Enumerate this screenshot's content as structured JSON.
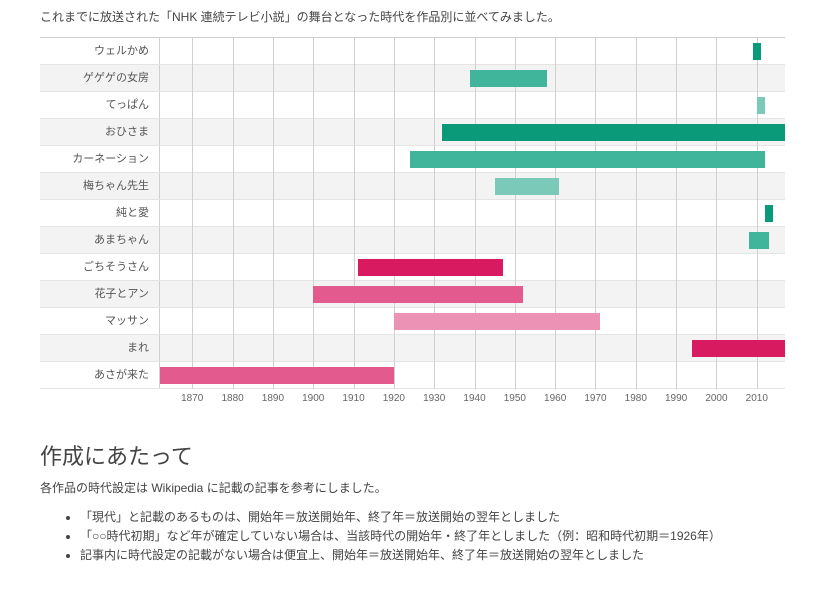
{
  "intro_text": "これまでに放送された「NHK 連続テレビ小説」の舞台となった時代を作品別に並べてみました。",
  "chart": {
    "type": "gantt-bar",
    "text_color": "#555555",
    "grid_color": "#d0d0d0",
    "row_alt_bg": "#f3f3f3",
    "axis": {
      "min": 1862,
      "max": 2017,
      "ticks": [
        1870,
        1880,
        1890,
        1900,
        1910,
        1920,
        1930,
        1940,
        1950,
        1960,
        1970,
        1980,
        1990,
        2000,
        2010
      ],
      "label_fontsize": 10
    },
    "colors": {
      "teal_dark": "#0a9a7a",
      "teal_mid": "#41b59c",
      "teal_light": "#7bc9b8",
      "pink_dark": "#d81b60",
      "pink_mid": "#e35a8f",
      "pink_light": "#ec92b4"
    },
    "rows": [
      {
        "label": "ウェルかめ",
        "start": 2009,
        "end": 2011,
        "color": "teal_dark"
      },
      {
        "label": "ゲゲゲの女房",
        "start": 1939,
        "end": 1958,
        "color": "teal_mid"
      },
      {
        "label": "てっぱん",
        "start": 2010,
        "end": 2012,
        "color": "teal_light"
      },
      {
        "label": "おひさま",
        "start": 1932,
        "end": 2017,
        "color": "teal_dark"
      },
      {
        "label": "カーネーション",
        "start": 1924,
        "end": 2012,
        "color": "teal_mid"
      },
      {
        "label": "梅ちゃん先生",
        "start": 1945,
        "end": 1961,
        "color": "teal_light"
      },
      {
        "label": "純と愛",
        "start": 2012,
        "end": 2014,
        "color": "teal_dark"
      },
      {
        "label": "あまちゃん",
        "start": 2008,
        "end": 2013,
        "color": "teal_mid"
      },
      {
        "label": "ごちそうさん",
        "start": 1911,
        "end": 1947,
        "color": "pink_dark"
      },
      {
        "label": "花子とアン",
        "start": 1900,
        "end": 1952,
        "color": "pink_mid"
      },
      {
        "label": "マッサン",
        "start": 1920,
        "end": 1971,
        "color": "pink_light"
      },
      {
        "label": "まれ",
        "start": 1994,
        "end": 2017,
        "color": "pink_dark"
      },
      {
        "label": "あさが来た",
        "start": 1862,
        "end": 1920,
        "color": "pink_mid"
      }
    ]
  },
  "notes_section": {
    "heading": "作成にあたって",
    "subheading": "各作品の時代設定は Wikipedia に記載の記事を参考にしました。",
    "bullets": [
      "「現代」と記載のあるものは、開始年＝放送開始年、終了年＝放送開始の翌年としました",
      "「○○時代初期」など年が確定していない場合は、当該時代の開始年・終了年としました（例：昭和時代初期＝1926年）",
      "記事内に時代設定の記載がない場合は便宜上、開始年＝放送開始年、終了年＝放送開始の翌年としました"
    ]
  }
}
